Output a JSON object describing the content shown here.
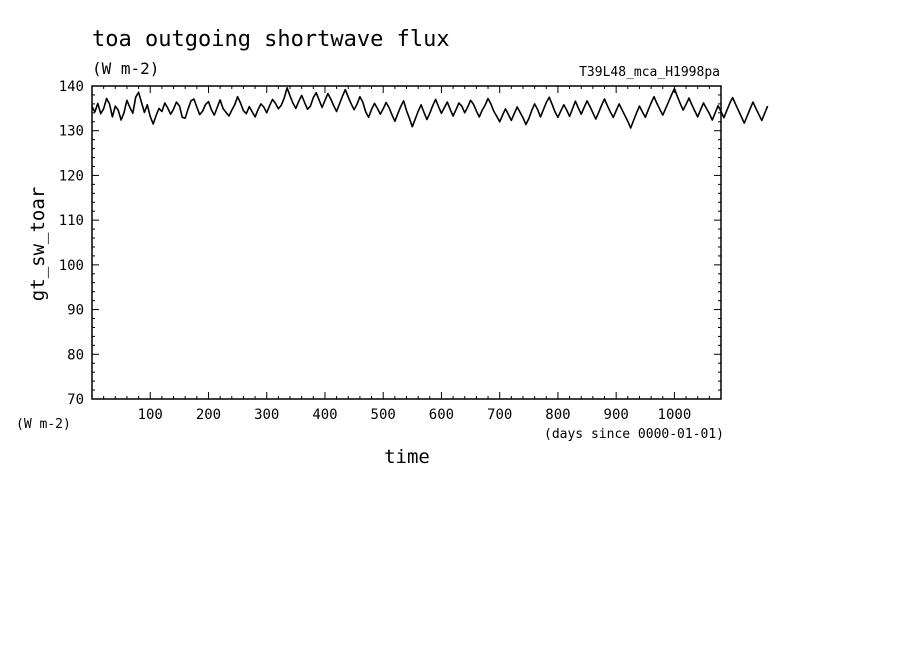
{
  "chart_data": {
    "type": "line",
    "title": "toa outgoing shortwave flux",
    "title_units": "(W m-2)",
    "run_label": "T39L48_mca_H1998pa",
    "xlabel": "time",
    "xlabel_units": "(days since 0000-01-01)",
    "ylabel": "gt_sw_toar",
    "ylabel_units": "(W m-2)",
    "xlim": [
      0,
      1080
    ],
    "ylim": [
      70,
      140
    ],
    "x_ticks": [
      "100",
      "200",
      "300",
      "400",
      "500",
      "600",
      "700",
      "800",
      "900",
      "1000"
    ],
    "y_ticks": [
      "70",
      "80",
      "90",
      "100",
      "110",
      "120",
      "130",
      "140"
    ],
    "grid": false,
    "x_step_days": 5,
    "series": [
      {
        "values": [
          135.4,
          134.2,
          136.1,
          133.8,
          134.9,
          137.2,
          136.0,
          133.1,
          135.5,
          134.6,
          132.4,
          134.0,
          136.8,
          135.2,
          133.9,
          137.5,
          138.6,
          136.3,
          134.1,
          135.8,
          133.2,
          131.5,
          133.4,
          135.0,
          134.3,
          136.2,
          135.1,
          133.7,
          134.8,
          136.4,
          135.6,
          133.0,
          132.8,
          134.9,
          136.7,
          137.1,
          135.3,
          133.6,
          134.4,
          135.9,
          136.5,
          134.7,
          133.5,
          135.2,
          136.9,
          135.0,
          134.1,
          133.3,
          134.6,
          135.8,
          137.6,
          136.2,
          134.5,
          133.8,
          135.4,
          134.2,
          133.1,
          134.7,
          136.0,
          135.3,
          134.0,
          135.6,
          137.0,
          136.1,
          134.9,
          135.7,
          137.3,
          139.6,
          137.8,
          136.2,
          135.0,
          136.6,
          137.9,
          136.3,
          134.8,
          135.5,
          137.4,
          138.5,
          136.9,
          135.2,
          136.8,
          138.3,
          137.1,
          135.6,
          134.3,
          136.0,
          137.7,
          139.2,
          137.5,
          136.0,
          134.7,
          135.9,
          137.6,
          136.4,
          134.2,
          133.0,
          134.8,
          136.1,
          135.0,
          133.7,
          134.9,
          136.3,
          135.2,
          133.6,
          132.1,
          133.8,
          135.4,
          136.7,
          134.5,
          132.8,
          130.9,
          132.6,
          134.3,
          135.8,
          134.1,
          132.5,
          133.9,
          135.6,
          137.0,
          135.4,
          133.9,
          135.2,
          136.4,
          134.8,
          133.3,
          134.7,
          136.2,
          135.5,
          134.0,
          135.3,
          136.8,
          135.9,
          134.4,
          133.1,
          134.6,
          135.7,
          137.2,
          136.0,
          134.3,
          133.2,
          132.0,
          133.5,
          134.9,
          133.6,
          132.3,
          133.8,
          135.3,
          134.1,
          132.9,
          131.4,
          132.7,
          134.5,
          136.0,
          134.8,
          133.1,
          134.7,
          136.3,
          137.5,
          135.9,
          134.2,
          133.0,
          134.4,
          135.8,
          134.6,
          133.2,
          134.9,
          136.6,
          135.1,
          133.7,
          135.2,
          136.7,
          135.4,
          134.0,
          132.6,
          134.1,
          135.7,
          137.1,
          135.6,
          134.2,
          133.0,
          134.5,
          136.0,
          134.7,
          133.4,
          132.1,
          130.6,
          132.3,
          134.0,
          135.5,
          134.2,
          133.0,
          134.6,
          136.2,
          137.6,
          136.1,
          134.8,
          133.5,
          135.0,
          136.5,
          138.0,
          139.4,
          137.7,
          136.1,
          134.6,
          135.9,
          137.3,
          135.8,
          134.4,
          133.1,
          134.7,
          136.2,
          135.0,
          133.8,
          132.4,
          134.0,
          135.6,
          134.3,
          132.9,
          134.5,
          136.1,
          137.4,
          135.9,
          134.5,
          133.1,
          131.7,
          133.3,
          134.9,
          136.4,
          135.0,
          133.6,
          132.3,
          133.9,
          135.5
        ]
      }
    ]
  }
}
